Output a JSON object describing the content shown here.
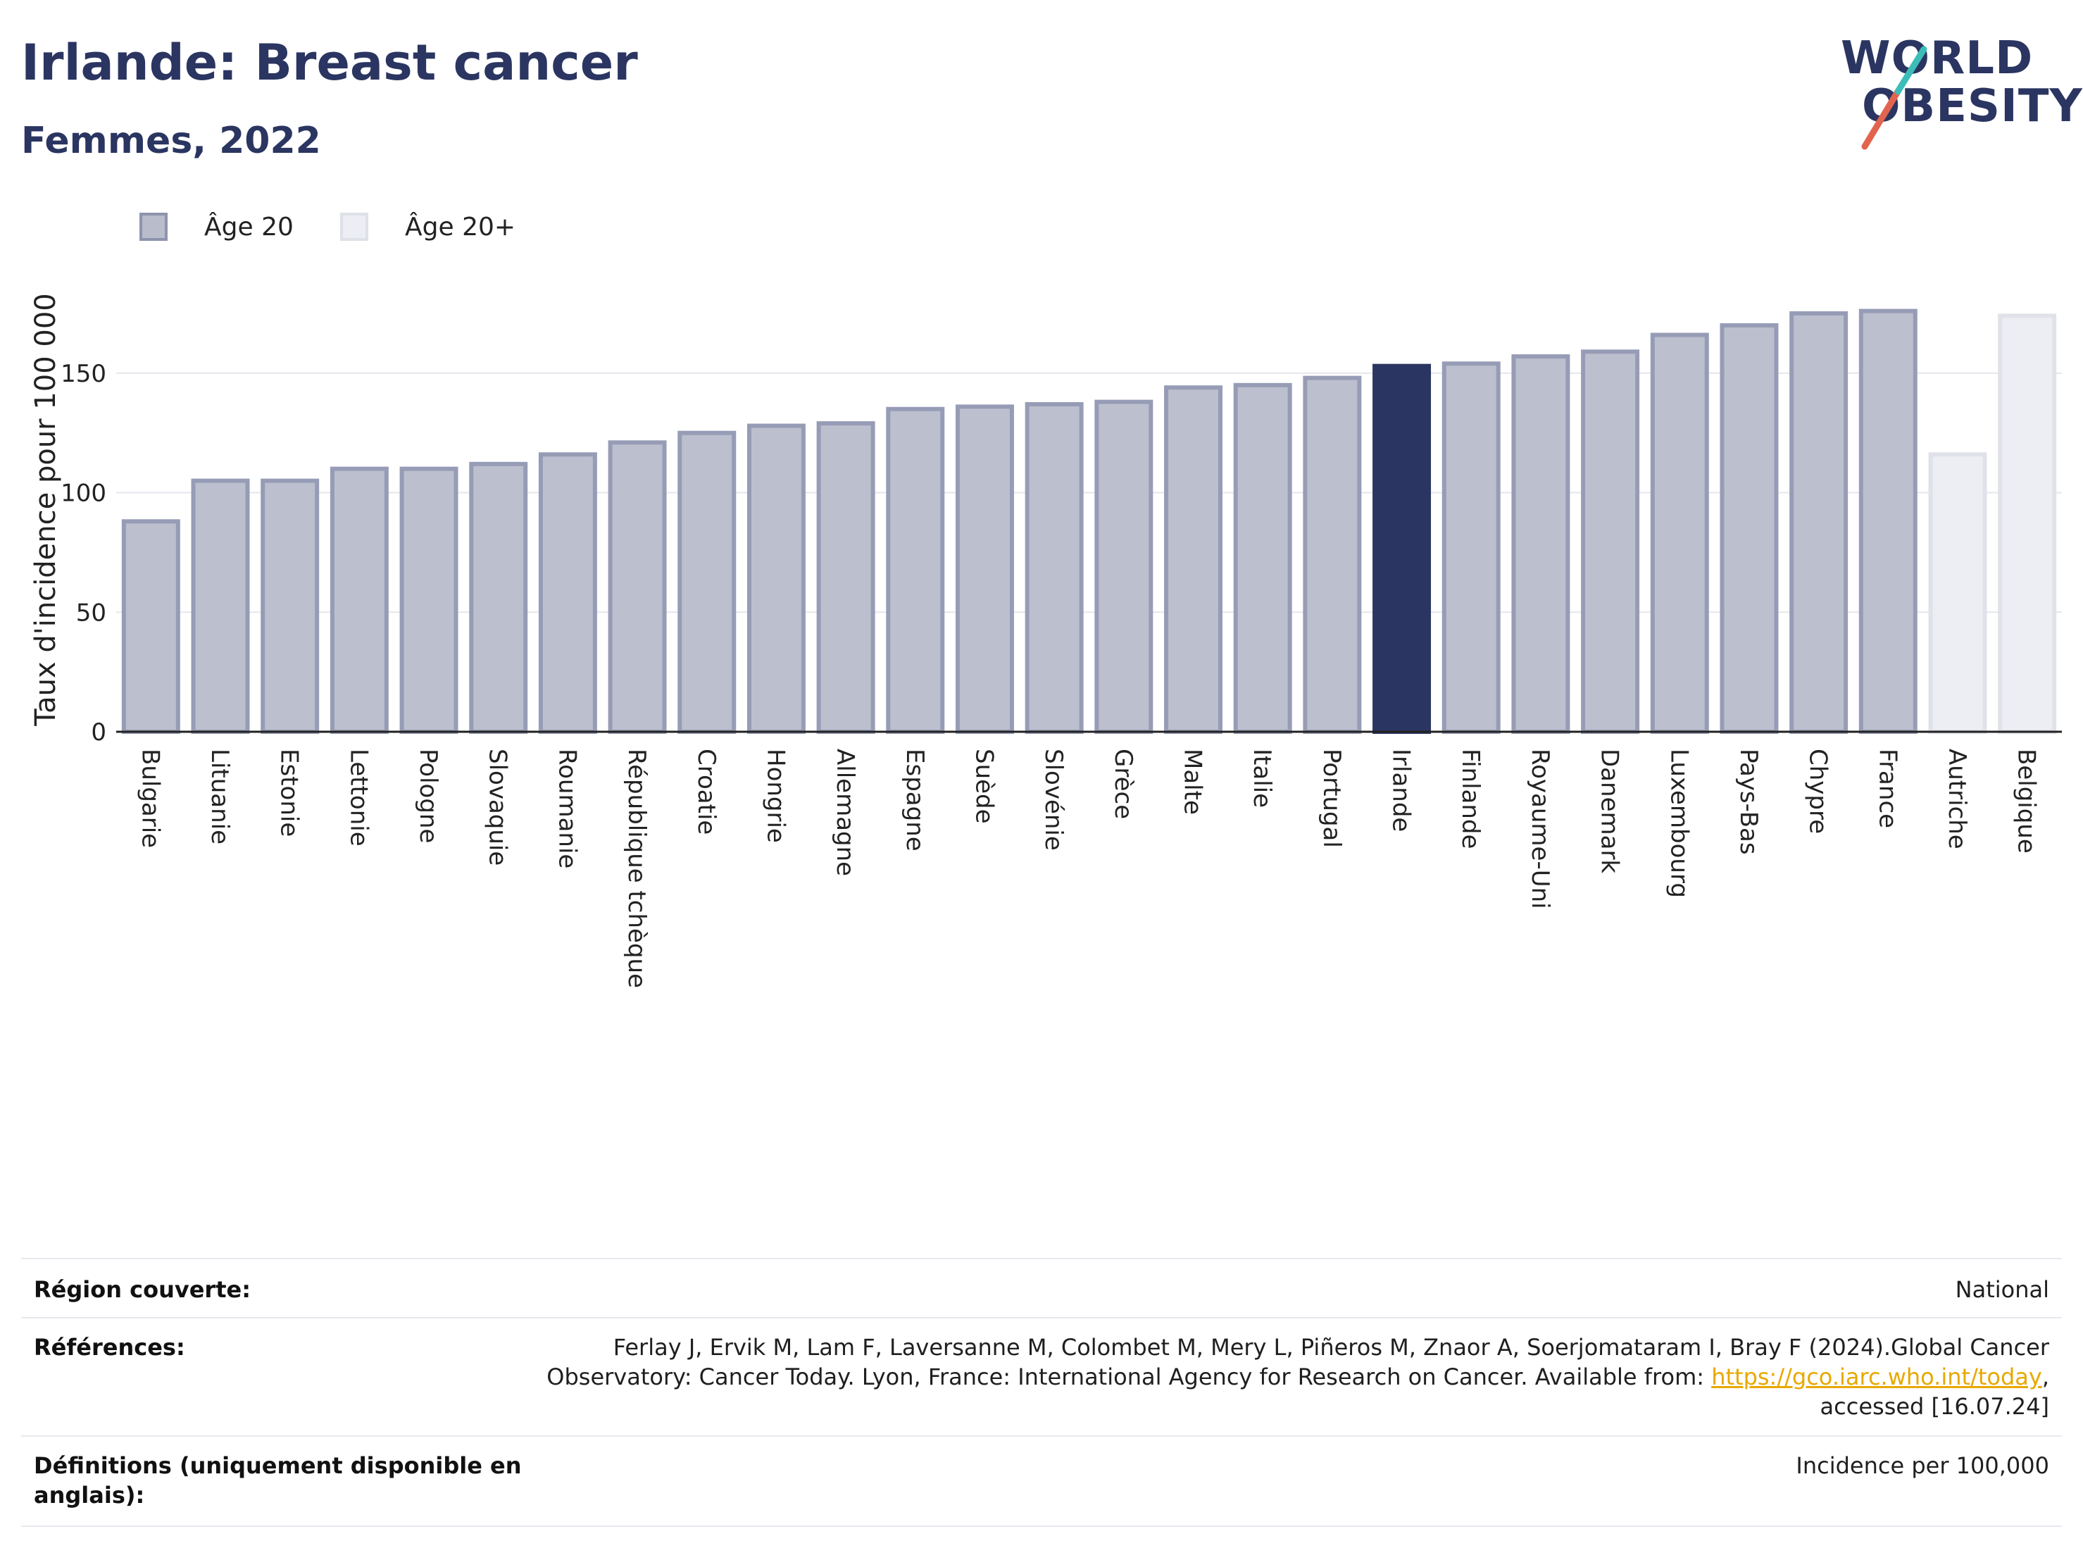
{
  "title": "Irlande: Breast cancer",
  "subtitle": "Femmes, 2022",
  "logo": {
    "line1": "WORLD",
    "line2": "OBESITY"
  },
  "legend": [
    {
      "label": "Âge 20",
      "color": "#b8bccb",
      "border": "#8e94ad"
    },
    {
      "label": "Âge 20+",
      "color": "#eceef3",
      "border": "#dfe1e8"
    }
  ],
  "colors": {
    "bar_default": "#bcbfcd",
    "bar_default_border": "#979cb6",
    "bar_highlight": "#2b3561",
    "bar_light": "#eceef3",
    "bar_light_border": "#e0e2e9",
    "grid": "#e6e6ec",
    "axis": "#222222"
  },
  "chart_data": {
    "type": "bar",
    "ylabel": "Taux d'incidence pour 100 000",
    "ylim": [
      0,
      180
    ],
    "yticks": [
      0,
      50,
      100,
      150
    ],
    "grid": true,
    "legend_position": "top-left",
    "highlight": "Irlande",
    "categories": [
      "Bulgarie",
      "Lituanie",
      "Estonie",
      "Lettonie",
      "Pologne",
      "Slovaquie",
      "Roumanie",
      "République tchèque",
      "Croatie",
      "Hongrie",
      "Allemagne",
      "Espagne",
      "Suède",
      "Slovénie",
      "Grèce",
      "Malte",
      "Italie",
      "Portugal",
      "Irlande",
      "Finlande",
      "Royaume-Uni",
      "Danemark",
      "Luxembourg",
      "Pays-Bas",
      "Chypre",
      "France",
      "Autriche",
      "Belgique"
    ],
    "values": [
      88,
      105,
      105,
      110,
      110,
      112,
      116,
      121,
      125,
      128,
      129,
      135,
      136,
      137,
      138,
      144,
      145,
      148,
      153,
      154,
      157,
      159,
      166,
      170,
      175,
      176,
      116,
      174
    ],
    "series_group": [
      "Âge 20",
      "Âge 20",
      "Âge 20",
      "Âge 20",
      "Âge 20",
      "Âge 20",
      "Âge 20",
      "Âge 20",
      "Âge 20",
      "Âge 20",
      "Âge 20",
      "Âge 20",
      "Âge 20",
      "Âge 20",
      "Âge 20",
      "Âge 20",
      "Âge 20",
      "Âge 20",
      "Âge 20",
      "Âge 20",
      "Âge 20",
      "Âge 20",
      "Âge 20",
      "Âge 20",
      "Âge 20",
      "Âge 20",
      "Âge 20+",
      "Âge 20+"
    ]
  },
  "info": {
    "region_label": "Région couverte:",
    "region_value": "National",
    "references_label": "Références:",
    "references_line1": "Ferlay J, Ervik M, Lam F, Laversanne M, Colombet M, Mery L, Piñeros M, Znaor A, Soerjomataram I, Bray F (2024).Global Cancer",
    "references_line2_prefix": "Observatory: Cancer Today. Lyon, France: International Agency for Research on Cancer. Available from: ",
    "references_link": "https://gco.iarc.who.int/today",
    "references_line2_suffix": ",",
    "references_line3": "accessed [16.07.24]",
    "definitions_label_1": "Définitions (uniquement disponible en",
    "definitions_label_2": "anglais):",
    "definitions_value": "Incidence per 100,000"
  }
}
